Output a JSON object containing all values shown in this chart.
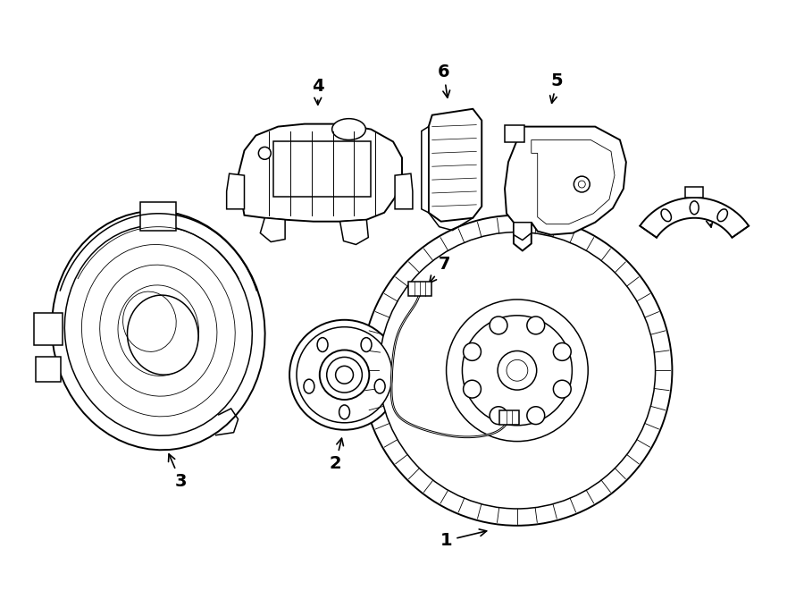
{
  "bg_color": "#ffffff",
  "line_color": "#000000",
  "fig_width": 9.0,
  "fig_height": 6.61,
  "dpi": 100,
  "lw": 1.1,
  "lw_thin": 0.6,
  "lw_thick": 1.4
}
